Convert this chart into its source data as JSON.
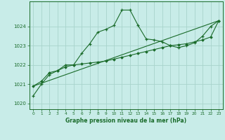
{
  "xlabel": "Graphe pression niveau de la mer (hPa)",
  "bg_color": "#c8ece8",
  "grid_color": "#a8d4cc",
  "line_color": "#1a6b2a",
  "xlim": [
    -0.5,
    23.5
  ],
  "ylim": [
    1019.7,
    1025.3
  ],
  "yticks": [
    1020,
    1021,
    1022,
    1023,
    1024
  ],
  "xticks": [
    0,
    1,
    2,
    3,
    4,
    5,
    6,
    7,
    8,
    9,
    10,
    11,
    12,
    13,
    14,
    15,
    16,
    17,
    18,
    19,
    20,
    21,
    22,
    23
  ],
  "series1_x": [
    0,
    1,
    2,
    3,
    4,
    5,
    6,
    7,
    8,
    9,
    10,
    11,
    12,
    13,
    14,
    15,
    16,
    17,
    18,
    19,
    20,
    21,
    22,
    23
  ],
  "series1_y": [
    1020.4,
    1021.0,
    1021.5,
    1021.7,
    1022.0,
    1022.0,
    1022.6,
    1023.1,
    1023.7,
    1023.85,
    1024.05,
    1024.85,
    1024.85,
    1024.05,
    1023.35,
    1023.3,
    1023.2,
    1023.0,
    1022.9,
    1023.0,
    1023.15,
    1023.5,
    1024.0,
    1024.3
  ],
  "series2_x": [
    0,
    1,
    2,
    3,
    4,
    5,
    6,
    7,
    8,
    9,
    10,
    11,
    12,
    13,
    14,
    15,
    16,
    17,
    18,
    19,
    20,
    21,
    22,
    23
  ],
  "series2_y": [
    1020.9,
    1021.15,
    1021.6,
    1021.7,
    1021.9,
    1022.0,
    1022.05,
    1022.1,
    1022.15,
    1022.2,
    1022.3,
    1022.4,
    1022.5,
    1022.6,
    1022.7,
    1022.8,
    1022.9,
    1023.0,
    1023.05,
    1023.1,
    1023.2,
    1023.3,
    1023.45,
    1024.3
  ],
  "series3_x": [
    0,
    23
  ],
  "series3_y": [
    1020.9,
    1024.3
  ]
}
